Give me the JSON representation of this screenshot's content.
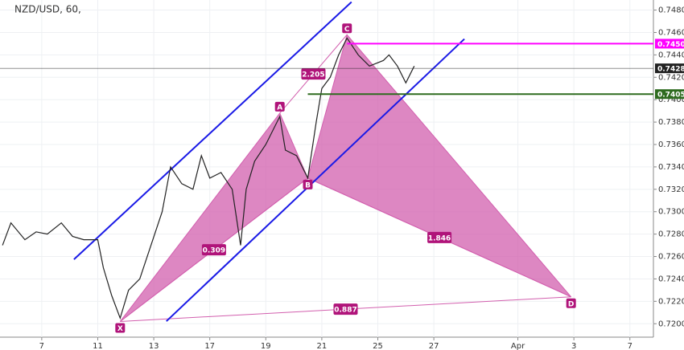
{
  "chart_data": {
    "type": "line",
    "title": "NZD/USD, 60,",
    "color": "#222222",
    "grid": true,
    "xlim": [
      -1.49,
      21.84
    ],
    "ylim": [
      0.7188,
      0.7489
    ],
    "xticks": [
      {
        "value": 0,
        "label": "7"
      },
      {
        "value": 2,
        "label": "11"
      },
      {
        "value": 4,
        "label": "13"
      },
      {
        "value": 6,
        "label": "17"
      },
      {
        "value": 8,
        "label": "19"
      },
      {
        "value": 10,
        "label": "21"
      },
      {
        "value": 12,
        "label": "25"
      },
      {
        "value": 14,
        "label": "27"
      },
      {
        "value": 17,
        "label": "Apr"
      },
      {
        "value": 19,
        "label": "3"
      },
      {
        "value": 21,
        "label": "7"
      }
    ],
    "yticks": [
      {
        "value": 0.72,
        "label": "0.7200"
      },
      {
        "value": 0.722,
        "label": "0.7220"
      },
      {
        "value": 0.724,
        "label": "0.7240"
      },
      {
        "value": 0.726,
        "label": "0.7260"
      },
      {
        "value": 0.728,
        "label": "0.7280"
      },
      {
        "value": 0.73,
        "label": "0.7300"
      },
      {
        "value": 0.732,
        "label": "0.7320"
      },
      {
        "value": 0.734,
        "label": "0.7340"
      },
      {
        "value": 0.736,
        "label": "0.7360"
      },
      {
        "value": 0.738,
        "label": "0.7380"
      },
      {
        "value": 0.74,
        "label": "0.7400"
      },
      {
        "value": 0.742,
        "label": "0.7420"
      },
      {
        "value": 0.744,
        "label": "0.7440"
      },
      {
        "value": 0.746,
        "label": "0.7460"
      },
      {
        "value": 0.748,
        "label": "0.7480"
      }
    ],
    "x": [
      -1.4,
      -1.1,
      -0.6,
      -0.2,
      0.2,
      0.7,
      1.1,
      1.5,
      2.0,
      2.2,
      2.5,
      2.8,
      3.1,
      3.5,
      3.9,
      4.3,
      4.6,
      5.0,
      5.4,
      5.7,
      6.0,
      6.4,
      6.8,
      7.1,
      7.3,
      7.6,
      8.0,
      8.5,
      8.7,
      9.1,
      9.5,
      9.8,
      10.0,
      10.3,
      10.6,
      10.9,
      11.3,
      11.7,
      12.2,
      12.4,
      12.7,
      13.0,
      13.3
    ],
    "values": [
      0.727,
      0.729,
      0.7275,
      0.7282,
      0.728,
      0.729,
      0.7278,
      0.7275,
      0.7275,
      0.725,
      0.7225,
      0.7205,
      0.723,
      0.724,
      0.727,
      0.73,
      0.734,
      0.7325,
      0.732,
      0.735,
      0.733,
      0.7335,
      0.732,
      0.727,
      0.732,
      0.7345,
      0.736,
      0.7385,
      0.7355,
      0.735,
      0.733,
      0.738,
      0.741,
      0.742,
      0.744,
      0.7455,
      0.744,
      0.743,
      0.7435,
      0.744,
      0.743,
      0.7415,
      0.743
    ],
    "pattern": {
      "color": "#d25fae",
      "labels": [
        "X",
        "A",
        "B",
        "C",
        "D"
      ],
      "x": [
        2.8,
        8.5,
        9.5,
        10.9,
        18.9
      ],
      "y": [
        0.7202,
        0.7388,
        0.733,
        0.7458,
        0.7224
      ],
      "ratios": [
        0.309,
        2.205,
        1.846,
        0.887
      ]
    },
    "channel": {
      "color": "#1a1ae6",
      "lines": [
        {
          "x": [
            1.15,
            11.06
          ],
          "y": [
            0.72574,
            0.74872
          ]
        },
        {
          "x": [
            4.45,
            15.09
          ],
          "y": [
            0.72022,
            0.74542
          ]
        }
      ]
    },
    "price_lines": [
      {
        "value": 0.7428,
        "label": "0.7428",
        "color": "#222222"
      },
      {
        "value": 0.745,
        "label": "0.7450",
        "color": "#ff00ff"
      },
      {
        "value": 0.7405,
        "label": "0.7405",
        "color": "#2e6b1f"
      }
    ]
  }
}
